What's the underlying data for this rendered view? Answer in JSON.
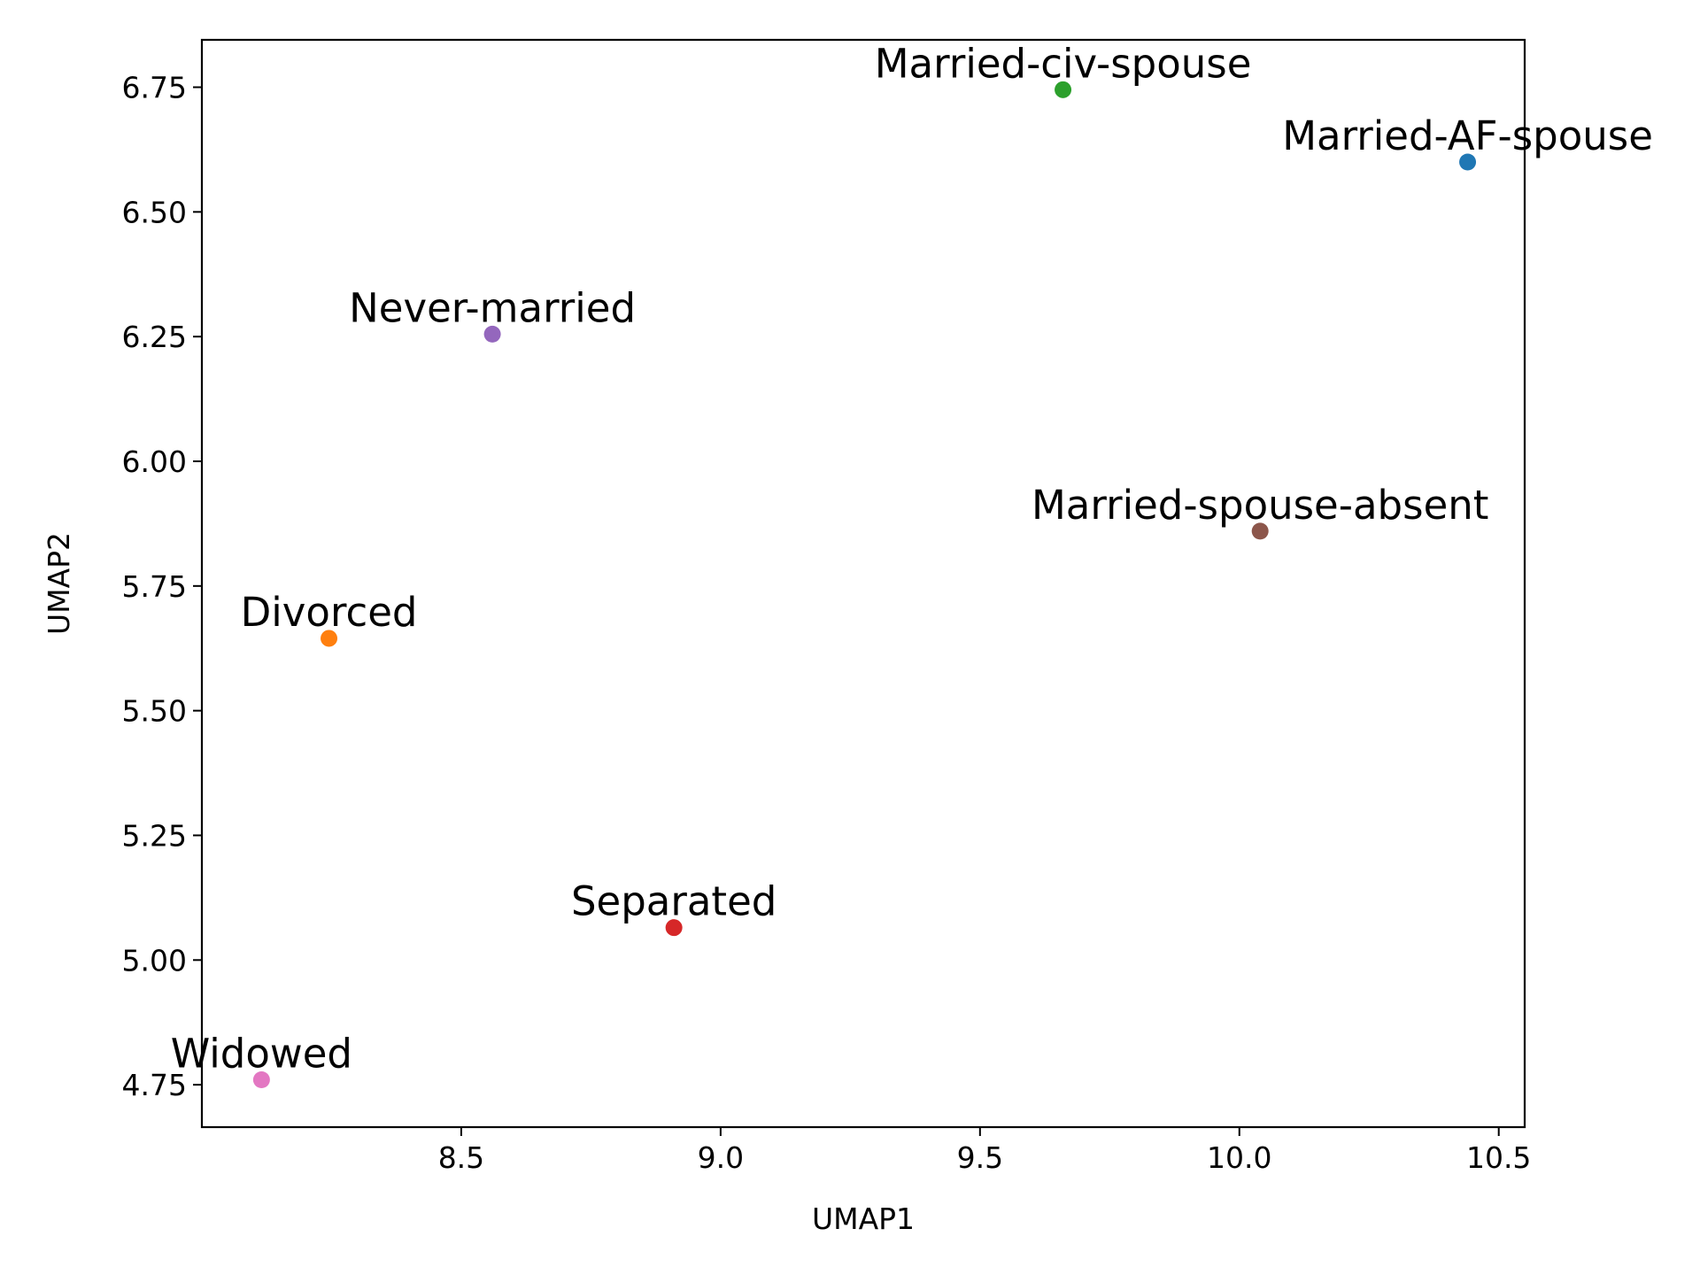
{
  "chart_data": {
    "type": "scatter",
    "title": "",
    "xlabel": "UMAP1",
    "ylabel": "UMAP2",
    "xlim": [
      8.0,
      10.55
    ],
    "ylim": [
      4.665,
      6.845
    ],
    "xticks": [
      8.5,
      9.0,
      9.5,
      10.0,
      10.5
    ],
    "xtick_labels": [
      "8.5",
      "9.0",
      "9.5",
      "10.0",
      "10.5"
    ],
    "yticks": [
      4.75,
      5.0,
      5.25,
      5.5,
      5.75,
      6.0,
      6.25,
      6.5,
      6.75
    ],
    "ytick_labels": [
      "4.75",
      "5.00",
      "5.25",
      "5.50",
      "5.75",
      "6.00",
      "6.25",
      "6.50",
      "6.75"
    ],
    "grid": false,
    "legend": "none",
    "points": [
      {
        "label": "Married-AF-spouse",
        "x": 10.44,
        "y": 6.6,
        "color": "#1f77b4"
      },
      {
        "label": "Divorced",
        "x": 8.245,
        "y": 5.645,
        "color": "#ff7f0e"
      },
      {
        "label": "Married-civ-spouse",
        "x": 9.66,
        "y": 6.745,
        "color": "#2ca02c"
      },
      {
        "label": "Separated",
        "x": 8.91,
        "y": 5.065,
        "color": "#d62728"
      },
      {
        "label": "Never-married",
        "x": 8.56,
        "y": 6.255,
        "color": "#9467bd"
      },
      {
        "label": "Married-spouse-absent",
        "x": 10.04,
        "y": 5.86,
        "color": "#8c564b"
      },
      {
        "label": "Widowed",
        "x": 8.115,
        "y": 4.76,
        "color": "#e377c2"
      }
    ]
  }
}
